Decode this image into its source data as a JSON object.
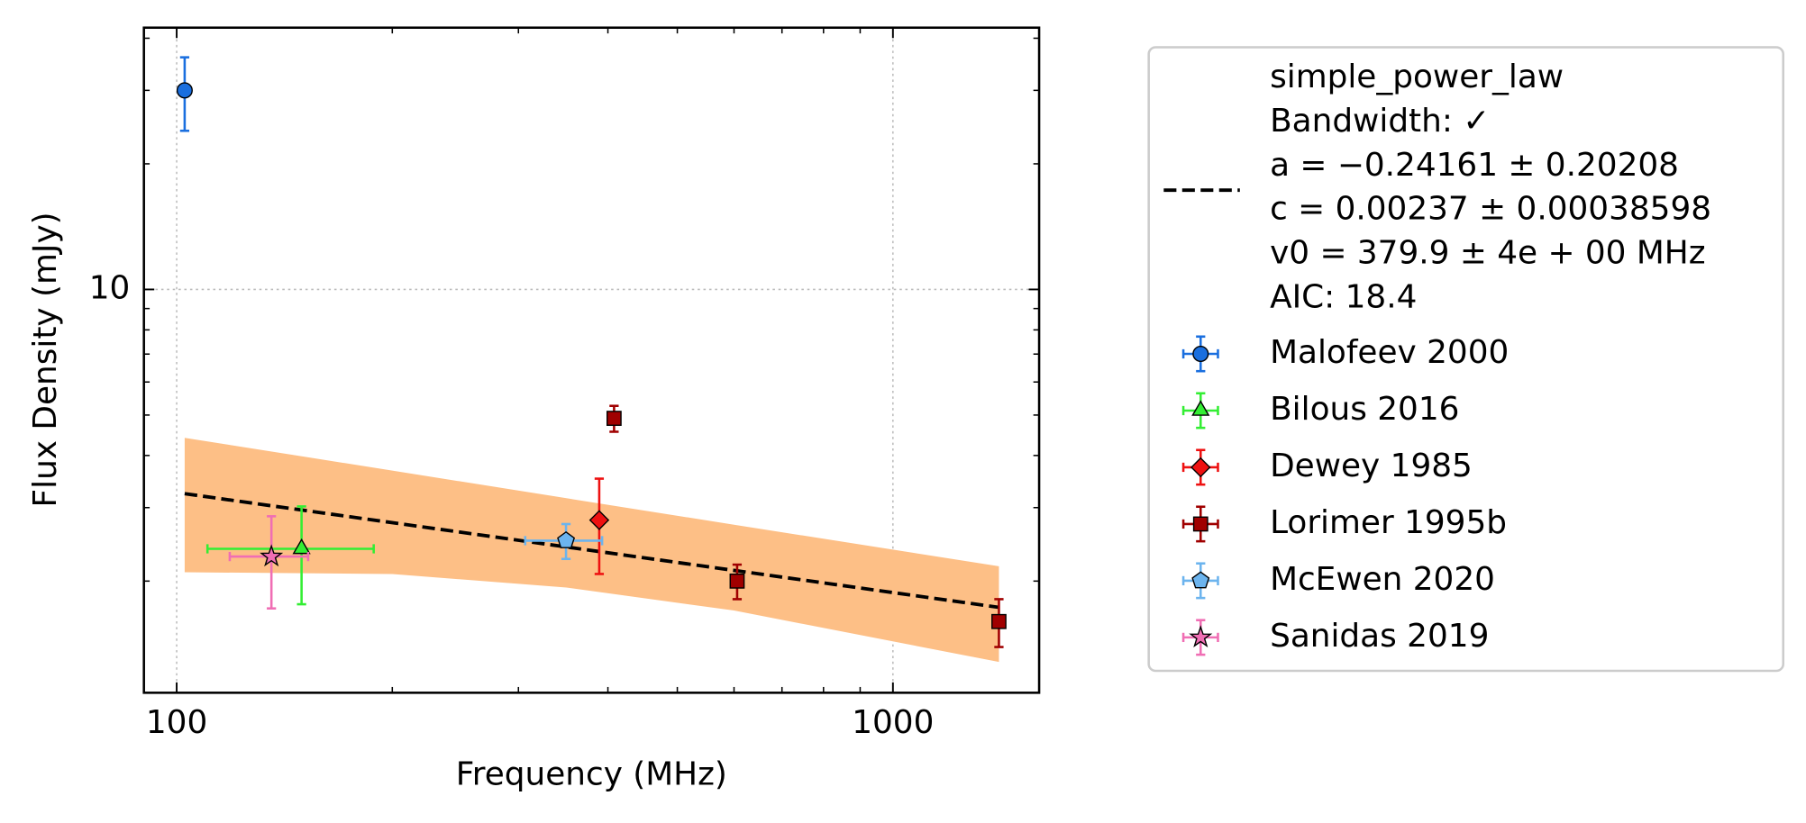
{
  "chart_data": {
    "type": "scatter",
    "x_label": "Frequency (MHz)",
    "y_label": "Flux Density (mJy)",
    "log_x": true,
    "log_y": true,
    "grid": true,
    "xlim": [
      90,
      1600
    ],
    "ylim": [
      1.08,
      42.4
    ],
    "xticks": [
      100,
      1000
    ],
    "yticks": [
      10
    ],
    "xminorticks": [
      200,
      300,
      400,
      500,
      600,
      700,
      800,
      900
    ],
    "yminorticks": [
      2,
      3,
      4,
      5,
      6,
      7,
      8,
      9,
      20,
      30,
      40
    ],
    "fit": {
      "x": [
        102.6,
        1406
      ],
      "values": [
        3.24,
        1.73
      ],
      "color": "#000000",
      "band_x": [
        102.6,
        200,
        350,
        600,
        1406
      ],
      "band_upper": [
        4.41,
        3.68,
        3.16,
        2.73,
        2.17
      ],
      "band_lower": [
        2.1,
        2.08,
        1.93,
        1.7,
        1.28
      ],
      "band_color": "#fdbf86",
      "legend_lines": [
        "simple_power_law",
        "Bandwidth: ✓",
        "a = −0.24161 ± 0.20208",
        "c = 0.00237 ± 0.00038598",
        "v0 = 379.9 ± 4e + 00 MHz",
        "AIC: 18.4"
      ]
    },
    "series": [
      {
        "name": "Malofeev 2000",
        "color": "#1a6fdf",
        "marker": "circle",
        "x": [
          102.6
        ],
        "values": [
          30.0
        ],
        "yerr": [
          6.0
        ]
      },
      {
        "name": "Bilous 2016",
        "color": "#33ee33",
        "marker": "triangle",
        "x": [
          149.4
        ],
        "values": [
          2.39
        ],
        "yerr": [
          0.63
        ],
        "xerr": [
          39
        ]
      },
      {
        "name": "Dewey 1985",
        "color": "#ee1111",
        "marker": "diamond",
        "x": [
          389
        ],
        "values": [
          2.8
        ],
        "yerr": [
          0.72
        ]
      },
      {
        "name": "Lorimer 1995b",
        "color": "#a00000",
        "marker": "square",
        "x": [
          408,
          606,
          1406
        ],
        "values": [
          4.91,
          2.0,
          1.6
        ],
        "yerr": [
          0.35,
          0.19,
          0.21
        ]
      },
      {
        "name": "McEwen 2020",
        "color": "#6cb4ee",
        "marker": "pentagon",
        "x": [
          349.6
        ],
        "values": [
          2.5
        ],
        "yerr": [
          0.24
        ],
        "xerr": [
          43
        ]
      },
      {
        "name": "Sanidas 2019",
        "color": "#f06eb4",
        "marker": "star",
        "x": [
          135.6
        ],
        "values": [
          2.29
        ],
        "yerr": [
          0.57
        ],
        "xerr": [
          17
        ]
      }
    ]
  }
}
